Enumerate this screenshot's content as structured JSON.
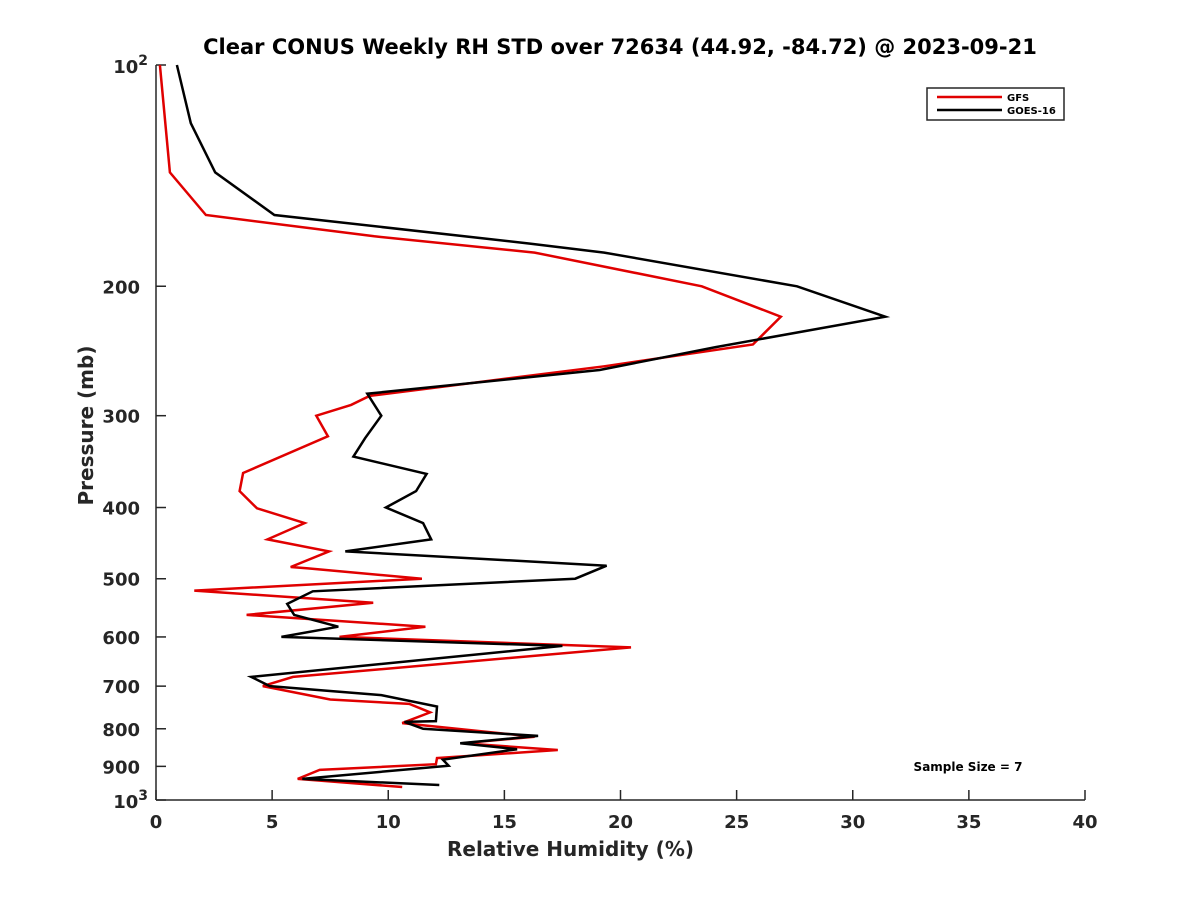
{
  "chart_data": {
    "type": "line",
    "title": "Clear CONUS Weekly RH STD over 72634 (44.92, -84.72) @ 2023-09-21",
    "xlabel": "Relative Humidity (%)",
    "ylabel": "Pressure (mb)",
    "xlim": [
      0,
      40
    ],
    "ylim": [
      100,
      1000
    ],
    "yscale": "log",
    "yreversed": true,
    "grid": false,
    "xticks": [
      0,
      5,
      10,
      15,
      20,
      25,
      30,
      35,
      40
    ],
    "xtick_labels": [
      "0",
      "5",
      "10",
      "15",
      "20",
      "25",
      "30",
      "35",
      "40"
    ],
    "yticks": [
      100,
      200,
      300,
      400,
      500,
      600,
      700,
      800,
      900,
      1000
    ],
    "ytick_labels": [
      {
        "base": "10",
        "exp": "2"
      },
      {
        "text": "200"
      },
      {
        "text": "300"
      },
      {
        "text": "400"
      },
      {
        "text": "500"
      },
      {
        "text": "600"
      },
      {
        "text": "700"
      },
      {
        "text": "800"
      },
      {
        "text": "900"
      },
      {
        "base": "10",
        "exp": "3"
      }
    ],
    "legend": {
      "position": "top-right"
    },
    "annotation": "Sample Size = 7",
    "series": [
      {
        "name": "GFS",
        "color": "#e00000",
        "points": [
          [
            0.17,
            100
          ],
          [
            0.6,
            140
          ],
          [
            2.15,
            160
          ],
          [
            9.4,
            171
          ],
          [
            16.3,
            180
          ],
          [
            23.5,
            200
          ],
          [
            26.9,
            220
          ],
          [
            25.7,
            240
          ],
          [
            19.3,
            257
          ],
          [
            9.2,
            282
          ],
          [
            8.4,
            290
          ],
          [
            6.9,
            300
          ],
          [
            7.4,
            320
          ],
          [
            3.75,
            359
          ],
          [
            3.6,
            380
          ],
          [
            4.35,
            401
          ],
          [
            6.4,
            420
          ],
          [
            4.8,
            442
          ],
          [
            7.45,
            459
          ],
          [
            5.8,
            482
          ],
          [
            6.55,
            484
          ],
          [
            11.45,
            500
          ],
          [
            1.65,
            519
          ],
          [
            9.35,
            539
          ],
          [
            3.9,
            560
          ],
          [
            11.6,
            581
          ],
          [
            7.9,
            600
          ],
          [
            20.45,
            620
          ],
          [
            5.9,
            680
          ],
          [
            4.6,
            700
          ],
          [
            7.5,
            730
          ],
          [
            10.9,
            740
          ],
          [
            11.8,
            760
          ],
          [
            10.6,
            786
          ],
          [
            16.3,
            820
          ],
          [
            13.2,
            837
          ],
          [
            17.3,
            855
          ],
          [
            12.1,
            877
          ],
          [
            12.05,
            894
          ],
          [
            7.05,
            910
          ],
          [
            6.1,
            936
          ],
          [
            10.6,
            960
          ]
        ]
      },
      {
        "name": "GOES-16",
        "color": "#000000",
        "points": [
          [
            0.9,
            100
          ],
          [
            1.5,
            120
          ],
          [
            2.55,
            140
          ],
          [
            5.1,
            160
          ],
          [
            16.1,
            175
          ],
          [
            19.3,
            180
          ],
          [
            27.6,
            200
          ],
          [
            31.4,
            220
          ],
          [
            24.1,
            242
          ],
          [
            19.1,
            260
          ],
          [
            9.1,
            280
          ],
          [
            9.7,
            300
          ],
          [
            9.0,
            322
          ],
          [
            8.5,
            341
          ],
          [
            11.65,
            360
          ],
          [
            11.2,
            380
          ],
          [
            9.9,
            400
          ],
          [
            11.5,
            420
          ],
          [
            11.85,
            442
          ],
          [
            8.15,
            459
          ],
          [
            19.4,
            480
          ],
          [
            18.05,
            500
          ],
          [
            6.75,
            520
          ],
          [
            5.65,
            541
          ],
          [
            5.95,
            560
          ],
          [
            7.85,
            581
          ],
          [
            5.4,
            600
          ],
          [
            17.5,
            617
          ],
          [
            4.1,
            680
          ],
          [
            4.9,
            700
          ],
          [
            9.7,
            720
          ],
          [
            12.1,
            746
          ],
          [
            12.05,
            781
          ],
          [
            10.7,
            783
          ],
          [
            11.5,
            800
          ],
          [
            16.45,
            818
          ],
          [
            13.1,
            837
          ],
          [
            15.55,
            853
          ],
          [
            12.35,
            881
          ],
          [
            12.6,
            898
          ],
          [
            6.3,
            936
          ],
          [
            12.2,
            954
          ]
        ]
      }
    ]
  }
}
